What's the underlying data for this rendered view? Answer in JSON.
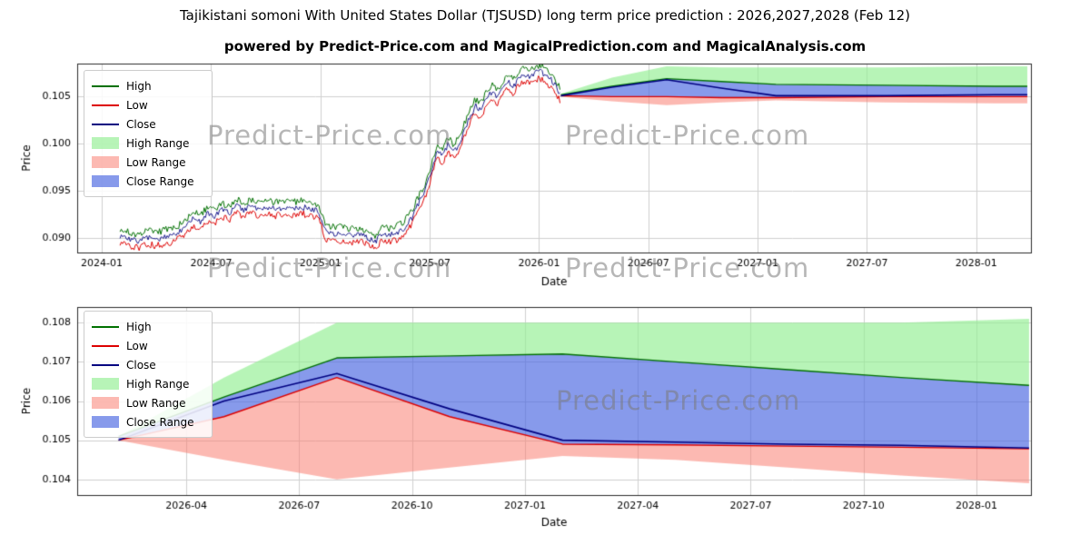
{
  "page": {
    "title": "Tajikistani somoni With United States Dollar (TJSUSD) long term price prediction : 2026,2027,2028 (Feb 12)",
    "subtitle": "powered by Predict-Price.com and MagicalPrediction.com and MagicalAnalysis.com",
    "watermark": "Predict-Price.com"
  },
  "colors": {
    "high_line": "#007000",
    "low_line": "#dd0000",
    "close_line": "#000080",
    "high_range": "rgba(144,238,144,0.65)",
    "low_range": "rgba(250,128,114,0.55)",
    "close_range": "rgba(70,100,225,0.65)",
    "grid": "#cfcfcf",
    "axis": "#2a2a2a",
    "tick_text": "#000000"
  },
  "legend": [
    {
      "label": "High",
      "swatch": "line",
      "color_key": "high_line"
    },
    {
      "label": "Low",
      "swatch": "line",
      "color_key": "low_line"
    },
    {
      "label": "Close",
      "swatch": "line",
      "color_key": "close_line"
    },
    {
      "label": "High Range",
      "swatch": "patch",
      "color_key": "high_range"
    },
    {
      "label": "Low Range",
      "swatch": "patch",
      "color_key": "low_range"
    },
    {
      "label": "Close Range",
      "swatch": "patch",
      "color_key": "close_range"
    }
  ],
  "chart_data": [
    {
      "type": "line",
      "name": "history-and-long-term-prediction",
      "xlabel": "Date",
      "ylabel": "Price",
      "x_unit": "months-since-2024-01",
      "xlim": [
        -1.35,
        51.0
      ],
      "ylim": [
        0.0885,
        0.1085
      ],
      "xticks": [
        {
          "m": 0,
          "label": "2024-01"
        },
        {
          "m": 6,
          "label": "2024-07"
        },
        {
          "m": 12,
          "label": "2025-01"
        },
        {
          "m": 18,
          "label": "2025-07"
        },
        {
          "m": 24,
          "label": "2026-01"
        },
        {
          "m": 30,
          "label": "2026-07"
        },
        {
          "m": 36,
          "label": "2027-01"
        },
        {
          "m": 42,
          "label": "2027-07"
        },
        {
          "m": 48,
          "label": "2028-01"
        }
      ],
      "yticks": [
        {
          "v": 0.09,
          "label": "0.090"
        },
        {
          "v": 0.095,
          "label": "0.095"
        },
        {
          "v": 0.1,
          "label": "0.100"
        },
        {
          "v": 0.105,
          "label": "0.105"
        }
      ],
      "historical": {
        "seed": 7,
        "step": 0.07,
        "noise": 0.00045,
        "spread": 0.00035,
        "close_keypoints": [
          [
            1.0,
            0.0903
          ],
          [
            1.5,
            0.0899
          ],
          [
            2.0,
            0.0897
          ],
          [
            2.5,
            0.0901
          ],
          [
            3.0,
            0.0899
          ],
          [
            3.5,
            0.0902
          ],
          [
            4.0,
            0.0904
          ],
          [
            4.5,
            0.091
          ],
          [
            5.0,
            0.0921
          ],
          [
            5.4,
            0.0917
          ],
          [
            5.8,
            0.0926
          ],
          [
            6.2,
            0.0923
          ],
          [
            6.6,
            0.093
          ],
          [
            7.0,
            0.0927
          ],
          [
            7.4,
            0.0935
          ],
          [
            7.8,
            0.093
          ],
          [
            8.2,
            0.0934
          ],
          [
            8.6,
            0.093
          ],
          [
            9.0,
            0.0933
          ],
          [
            9.5,
            0.0931
          ],
          [
            10.0,
            0.0933
          ],
          [
            10.5,
            0.0931
          ],
          [
            11.0,
            0.0933
          ],
          [
            11.5,
            0.0931
          ],
          [
            11.9,
            0.0929
          ],
          [
            12.3,
            0.0906
          ],
          [
            13.0,
            0.0905
          ],
          [
            13.6,
            0.0903
          ],
          [
            14.2,
            0.0904
          ],
          [
            14.7,
            0.0899
          ],
          [
            15.0,
            0.0896
          ],
          [
            15.4,
            0.0905
          ],
          [
            15.8,
            0.0903
          ],
          [
            16.2,
            0.0906
          ],
          [
            16.6,
            0.0911
          ],
          [
            17.0,
            0.0921
          ],
          [
            17.4,
            0.0938
          ],
          [
            17.8,
            0.0953
          ],
          [
            18.1,
            0.0972
          ],
          [
            18.4,
            0.0992
          ],
          [
            18.7,
            0.0987
          ],
          [
            19.0,
            0.1
          ],
          [
            19.3,
            0.0992
          ],
          [
            19.6,
            0.0999
          ],
          [
            19.9,
            0.1014
          ],
          [
            20.2,
            0.1028
          ],
          [
            20.5,
            0.104
          ],
          [
            20.8,
            0.1036
          ],
          [
            21.1,
            0.1047
          ],
          [
            21.4,
            0.1055
          ],
          [
            21.7,
            0.105
          ],
          [
            22.0,
            0.1059
          ],
          [
            22.3,
            0.1066
          ],
          [
            22.6,
            0.106
          ],
          [
            22.9,
            0.107
          ],
          [
            23.2,
            0.1074
          ],
          [
            23.5,
            0.1071
          ],
          [
            23.8,
            0.1075
          ],
          [
            24.1,
            0.1076
          ],
          [
            24.4,
            0.1072
          ],
          [
            24.7,
            0.1067
          ],
          [
            25.0,
            0.1058
          ],
          [
            25.2,
            0.1052
          ]
        ]
      },
      "prediction": {
        "x": [
          25.2,
          28.0,
          31.0,
          34.0,
          37.0,
          43.0,
          49.0,
          50.8
        ],
        "high_top": [
          0.1053,
          0.107,
          0.1082,
          0.1081,
          0.1081,
          0.1081,
          0.1082,
          0.1082
        ],
        "close_top": [
          0.1052,
          0.1061,
          0.1069,
          0.1066,
          0.1063,
          0.1062,
          0.1061,
          0.1061
        ],
        "close": [
          0.1051,
          0.106,
          0.1068,
          0.1059,
          0.1051,
          0.1051,
          0.1052,
          0.1052
        ],
        "close_bot": [
          0.1051,
          0.105,
          0.105,
          0.1049,
          0.1049,
          0.105,
          0.105,
          0.105
        ],
        "low_bot": [
          0.105,
          0.1045,
          0.1041,
          0.1044,
          0.1046,
          0.1044,
          0.1043,
          0.1043
        ]
      }
    },
    {
      "type": "line",
      "name": "prediction-detail-2026-2028",
      "xlabel": "Date",
      "ylabel": "Price",
      "x_unit": "months-since-2024-01",
      "xlim": [
        24.1,
        49.45
      ],
      "ylim": [
        0.1036,
        0.1084
      ],
      "xticks": [
        {
          "m": 27,
          "label": "2026-04"
        },
        {
          "m": 30,
          "label": "2026-07"
        },
        {
          "m": 33,
          "label": "2026-10"
        },
        {
          "m": 36,
          "label": "2027-01"
        },
        {
          "m": 39,
          "label": "2027-04"
        },
        {
          "m": 42,
          "label": "2027-07"
        },
        {
          "m": 45,
          "label": "2027-10"
        },
        {
          "m": 48,
          "label": "2028-01"
        }
      ],
      "yticks": [
        {
          "v": 0.104,
          "label": "0.104"
        },
        {
          "v": 0.105,
          "label": "0.105"
        },
        {
          "v": 0.106,
          "label": "0.106"
        },
        {
          "v": 0.107,
          "label": "0.107"
        },
        {
          "v": 0.108,
          "label": "0.108"
        }
      ],
      "prediction": {
        "x": [
          25.2,
          28.0,
          31.0,
          34.0,
          37.0,
          40.0,
          43.0,
          46.0,
          49.4
        ],
        "high_top": [
          0.1051,
          0.1066,
          0.108,
          0.108,
          0.108,
          0.108,
          0.108,
          0.108,
          0.1081
        ],
        "close_top": [
          0.1051,
          0.1061,
          0.1071,
          0.10715,
          0.1072,
          0.107,
          0.1068,
          0.1066,
          0.1064
        ],
        "close": [
          0.105,
          0.106,
          0.1067,
          0.1058,
          0.105,
          0.10495,
          0.1049,
          0.10487,
          0.1048
        ],
        "close_bot": [
          0.105,
          0.1056,
          0.1066,
          0.1056,
          0.1049,
          0.10488,
          0.10485,
          0.10482,
          0.10478
        ],
        "low_bot": [
          0.105,
          0.1045,
          0.104,
          0.1043,
          0.1046,
          0.1045,
          0.1043,
          0.1041,
          0.1039
        ]
      }
    }
  ]
}
